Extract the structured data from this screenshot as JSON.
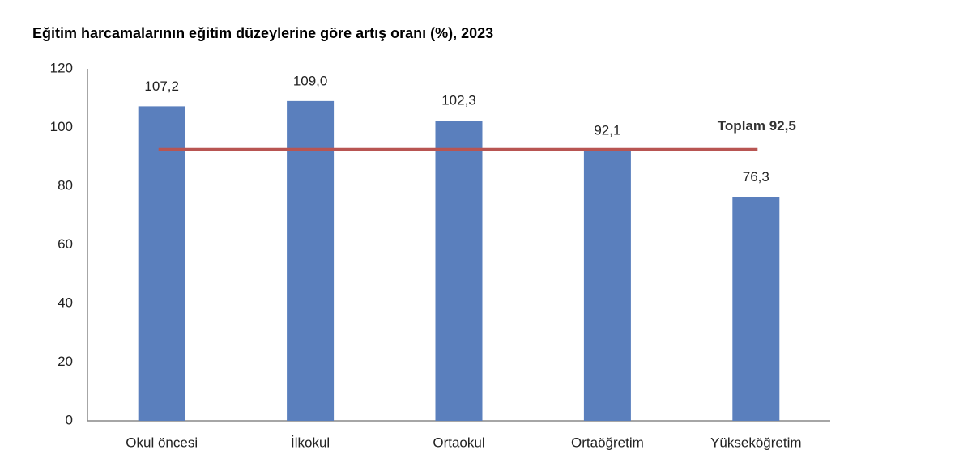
{
  "chart_data": {
    "type": "bar",
    "title": "Eğitim harcamalarının eğitim düzeylerine göre artış oranı (%), 2023",
    "categories": [
      "Okul öncesi",
      "İlkokul",
      "Ortaokul",
      "Ortaöğretim",
      "Yükseköğretim"
    ],
    "values": [
      107.2,
      109.0,
      102.3,
      92.1,
      76.3
    ],
    "value_labels": [
      "107,2",
      "109,0",
      "102,3",
      "92,1",
      "76,3"
    ],
    "color": "#5a7fbd",
    "reference_line": {
      "value": 92.5,
      "label": "Toplam 92,5",
      "color": "#b85552"
    },
    "ylim": [
      0,
      120
    ],
    "yticks": [
      0,
      20,
      40,
      60,
      80,
      100,
      120
    ],
    "grid": false
  }
}
